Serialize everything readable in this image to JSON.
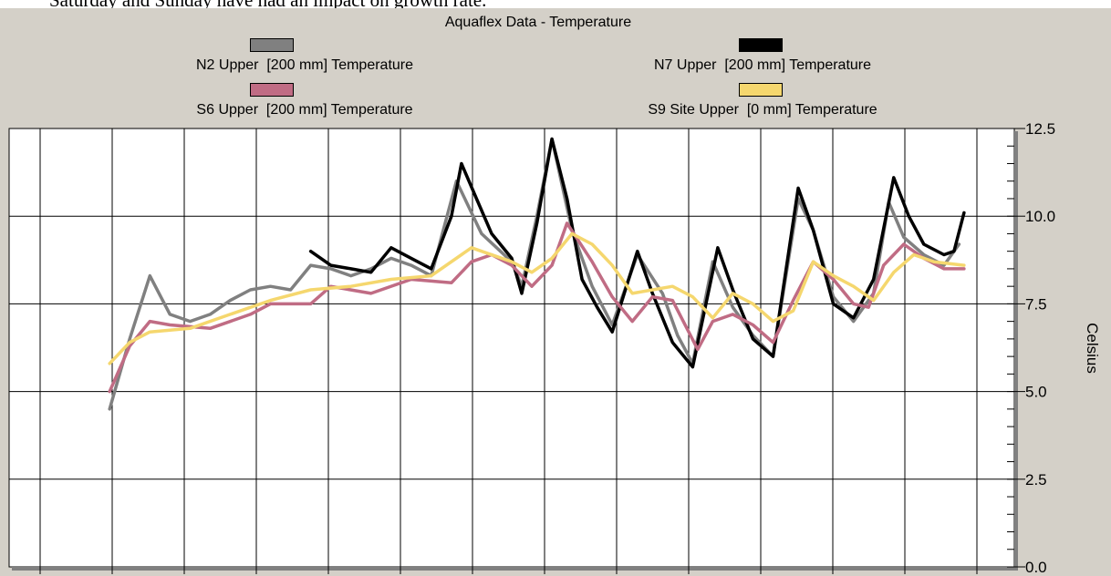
{
  "caption_fragment": "Saturday and Sunday have had an impact on growth rate.",
  "chart_data": {
    "type": "line",
    "title": "Aquaflex Data - Temperature",
    "ylabel": "Celsius",
    "ylim": [
      0,
      12.5
    ],
    "y_ticks": [
      0.0,
      2.5,
      5.0,
      7.5,
      10.0,
      12.5
    ],
    "y_tick_labels": [
      "0.0",
      "2.5",
      "5.0",
      "7.5",
      "10.0",
      "12.5"
    ],
    "x_gridlines": 14,
    "grid": true,
    "legend_placement": "top",
    "series": [
      {
        "name": "N2 Upper  [200 mm] Temperature",
        "color": "#808080",
        "values": [
          [
            0.1,
            4.5
          ],
          [
            0.12,
            6.5
          ],
          [
            0.14,
            8.3
          ],
          [
            0.16,
            7.2
          ],
          [
            0.18,
            7.0
          ],
          [
            0.2,
            7.2
          ],
          [
            0.22,
            7.6
          ],
          [
            0.24,
            7.9
          ],
          [
            0.26,
            8.0
          ],
          [
            0.28,
            7.9
          ],
          [
            0.3,
            8.6
          ],
          [
            0.32,
            8.5
          ],
          [
            0.34,
            8.3
          ],
          [
            0.36,
            8.5
          ],
          [
            0.38,
            8.8
          ],
          [
            0.4,
            8.6
          ],
          [
            0.42,
            8.3
          ],
          [
            0.43,
            9.4
          ],
          [
            0.445,
            11.0
          ],
          [
            0.47,
            9.5
          ],
          [
            0.5,
            8.7
          ],
          [
            0.51,
            8.0
          ],
          [
            0.525,
            10.0
          ],
          [
            0.54,
            12.2
          ],
          [
            0.56,
            9.6
          ],
          [
            0.58,
            8.0
          ],
          [
            0.6,
            6.9
          ],
          [
            0.625,
            8.9
          ],
          [
            0.65,
            7.8
          ],
          [
            0.665,
            6.6
          ],
          [
            0.68,
            5.8
          ],
          [
            0.7,
            8.7
          ],
          [
            0.72,
            7.4
          ],
          [
            0.74,
            6.6
          ],
          [
            0.76,
            6.0
          ],
          [
            0.785,
            10.5
          ],
          [
            0.8,
            9.6
          ],
          [
            0.82,
            7.7
          ],
          [
            0.84,
            7.0
          ],
          [
            0.86,
            7.8
          ],
          [
            0.875,
            10.4
          ],
          [
            0.89,
            9.4
          ],
          [
            0.91,
            8.9
          ],
          [
            0.93,
            8.6
          ],
          [
            0.945,
            9.2
          ]
        ]
      },
      {
        "name": "N7 Upper  [200 mm] Temperature",
        "color": "#000000",
        "values": [
          [
            0.3,
            9.0
          ],
          [
            0.32,
            8.6
          ],
          [
            0.34,
            8.5
          ],
          [
            0.36,
            8.4
          ],
          [
            0.38,
            9.1
          ],
          [
            0.4,
            8.8
          ],
          [
            0.42,
            8.5
          ],
          [
            0.44,
            10.0
          ],
          [
            0.45,
            11.5
          ],
          [
            0.465,
            10.5
          ],
          [
            0.48,
            9.5
          ],
          [
            0.5,
            8.8
          ],
          [
            0.51,
            7.8
          ],
          [
            0.525,
            9.8
          ],
          [
            0.54,
            12.2
          ],
          [
            0.555,
            10.5
          ],
          [
            0.57,
            8.2
          ],
          [
            0.585,
            7.4
          ],
          [
            0.6,
            6.7
          ],
          [
            0.625,
            9.0
          ],
          [
            0.64,
            7.8
          ],
          [
            0.66,
            6.4
          ],
          [
            0.68,
            5.7
          ],
          [
            0.705,
            9.1
          ],
          [
            0.72,
            7.9
          ],
          [
            0.74,
            6.5
          ],
          [
            0.76,
            6.0
          ],
          [
            0.785,
            10.8
          ],
          [
            0.8,
            9.6
          ],
          [
            0.82,
            7.5
          ],
          [
            0.84,
            7.1
          ],
          [
            0.86,
            8.2
          ],
          [
            0.88,
            11.1
          ],
          [
            0.895,
            10.0
          ],
          [
            0.91,
            9.2
          ],
          [
            0.93,
            8.9
          ],
          [
            0.94,
            9.0
          ],
          [
            0.95,
            10.1
          ]
        ]
      },
      {
        "name": "S6 Upper  [200 mm] Temperature",
        "color": "#c06c84",
        "values": [
          [
            0.1,
            5.0
          ],
          [
            0.12,
            6.3
          ],
          [
            0.14,
            7.0
          ],
          [
            0.16,
            6.9
          ],
          [
            0.2,
            6.8
          ],
          [
            0.24,
            7.2
          ],
          [
            0.26,
            7.5
          ],
          [
            0.3,
            7.5
          ],
          [
            0.32,
            8.0
          ],
          [
            0.36,
            7.8
          ],
          [
            0.4,
            8.2
          ],
          [
            0.44,
            8.1
          ],
          [
            0.46,
            8.7
          ],
          [
            0.48,
            8.9
          ],
          [
            0.5,
            8.6
          ],
          [
            0.52,
            8.0
          ],
          [
            0.54,
            8.6
          ],
          [
            0.555,
            9.8
          ],
          [
            0.58,
            8.7
          ],
          [
            0.6,
            7.7
          ],
          [
            0.62,
            7.0
          ],
          [
            0.64,
            7.7
          ],
          [
            0.66,
            7.6
          ],
          [
            0.685,
            6.2
          ],
          [
            0.7,
            7.0
          ],
          [
            0.72,
            7.2
          ],
          [
            0.74,
            6.9
          ],
          [
            0.76,
            6.4
          ],
          [
            0.78,
            7.6
          ],
          [
            0.8,
            8.7
          ],
          [
            0.82,
            8.2
          ],
          [
            0.84,
            7.5
          ],
          [
            0.855,
            7.4
          ],
          [
            0.87,
            8.6
          ],
          [
            0.89,
            9.2
          ],
          [
            0.91,
            8.8
          ],
          [
            0.93,
            8.5
          ],
          [
            0.95,
            8.5
          ]
        ]
      },
      {
        "name": "S9 Site Upper  [0 mm] Temperature",
        "color": "#f5d76e",
        "values": [
          [
            0.1,
            5.8
          ],
          [
            0.12,
            6.4
          ],
          [
            0.14,
            6.7
          ],
          [
            0.18,
            6.8
          ],
          [
            0.22,
            7.2
          ],
          [
            0.26,
            7.6
          ],
          [
            0.3,
            7.9
          ],
          [
            0.34,
            8.0
          ],
          [
            0.38,
            8.2
          ],
          [
            0.42,
            8.3
          ],
          [
            0.46,
            9.1
          ],
          [
            0.5,
            8.7
          ],
          [
            0.52,
            8.4
          ],
          [
            0.54,
            8.8
          ],
          [
            0.56,
            9.5
          ],
          [
            0.58,
            9.2
          ],
          [
            0.6,
            8.6
          ],
          [
            0.62,
            7.8
          ],
          [
            0.66,
            8.0
          ],
          [
            0.68,
            7.7
          ],
          [
            0.7,
            7.1
          ],
          [
            0.72,
            7.8
          ],
          [
            0.74,
            7.5
          ],
          [
            0.76,
            7.0
          ],
          [
            0.78,
            7.3
          ],
          [
            0.8,
            8.7
          ],
          [
            0.82,
            8.3
          ],
          [
            0.84,
            8.0
          ],
          [
            0.86,
            7.6
          ],
          [
            0.88,
            8.4
          ],
          [
            0.9,
            8.9
          ],
          [
            0.92,
            8.7
          ],
          [
            0.95,
            8.6
          ]
        ]
      }
    ]
  }
}
